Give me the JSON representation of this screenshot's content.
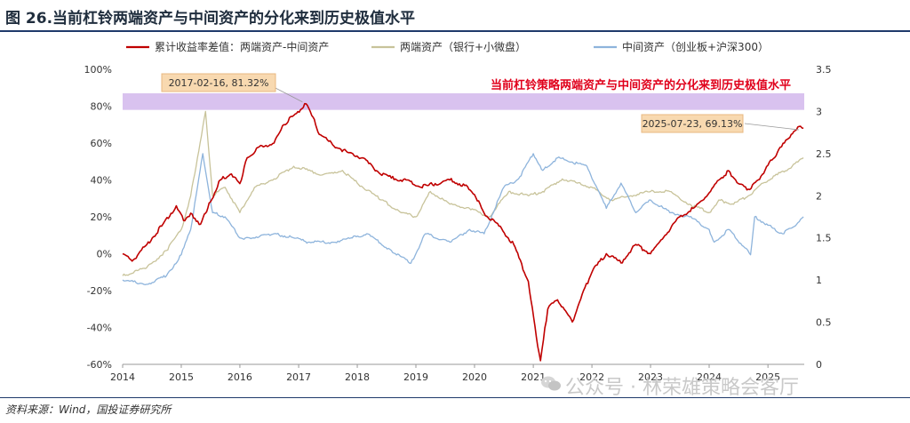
{
  "figure": {
    "title": "图 26.当前杠铃两端资产与中间资产的分化来到历史极值水平",
    "source": "资料来源：Wind，国投证券研究所",
    "watermark": "公众号 · 林荣雄策略会客厅"
  },
  "chart_data": {
    "type": "line",
    "legend_placement": "top",
    "grid": false,
    "x_ticks": [
      "2014",
      "2015",
      "2016",
      "2017",
      "2018",
      "2019",
      "2020",
      "2021",
      "2022",
      "2023",
      "2024",
      "2025"
    ],
    "xlim": [
      "2014-01-01",
      "2025-08-15"
    ],
    "y_left": {
      "ylim": [
        -60,
        100
      ],
      "ticks": [
        "100%",
        "80%",
        "60%",
        "40%",
        "20%",
        "0%",
        "-20%",
        "-40%",
        "-60%"
      ]
    },
    "y_right": {
      "ylim": [
        0,
        3.5
      ],
      "ticks": [
        "3.5",
        "3",
        "2.5",
        "2",
        "1.5",
        "1",
        "0.5",
        "0"
      ]
    },
    "highlight_band": {
      "y_from": 78,
      "y_to": 87,
      "color": "#c9a8e8",
      "label": "当前杠铃策略两端资产与中间资产的分化来到历史极值水平"
    },
    "annotations": [
      {
        "date": "2017-02-16",
        "value": 81.32,
        "label": "2017-02-16, 81.32%"
      },
      {
        "date": "2025-07-23",
        "value": 69.13,
        "label": "2025-07-23, 69.13%"
      }
    ],
    "series": [
      {
        "name": "累计收益率差值：两端资产-中间资产",
        "axis": "left",
        "color": "#c00000",
        "points": [
          [
            "2014-01-01",
            0
          ],
          [
            "2014-03-01",
            -4
          ],
          [
            "2014-06-01",
            5
          ],
          [
            "2014-09-01",
            15
          ],
          [
            "2014-12-01",
            26
          ],
          [
            "2015-01-15",
            18
          ],
          [
            "2015-03-01",
            22
          ],
          [
            "2015-05-01",
            16
          ],
          [
            "2015-06-01",
            22
          ],
          [
            "2015-07-01",
            28
          ],
          [
            "2015-09-01",
            40
          ],
          [
            "2015-11-01",
            43
          ],
          [
            "2016-01-01",
            38
          ],
          [
            "2016-02-15",
            52
          ],
          [
            "2016-05-01",
            58
          ],
          [
            "2016-08-01",
            60
          ],
          [
            "2016-10-01",
            70
          ],
          [
            "2016-12-01",
            75
          ],
          [
            "2017-02-16",
            81.32
          ],
          [
            "2017-04-01",
            74
          ],
          [
            "2017-05-01",
            66
          ],
          [
            "2017-08-01",
            59
          ],
          [
            "2017-11-01",
            55
          ],
          [
            "2018-02-01",
            52
          ],
          [
            "2018-05-01",
            45
          ],
          [
            "2018-08-01",
            41
          ],
          [
            "2018-11-01",
            40
          ],
          [
            "2019-02-01",
            36
          ],
          [
            "2019-05-01",
            38
          ],
          [
            "2019-08-01",
            40
          ],
          [
            "2019-11-01",
            37
          ],
          [
            "2020-01-01",
            32
          ],
          [
            "2020-03-01",
            22
          ],
          [
            "2020-06-01",
            15
          ],
          [
            "2020-09-01",
            5
          ],
          [
            "2020-12-01",
            -15
          ],
          [
            "2021-01-20",
            -45
          ],
          [
            "2021-02-15",
            -58
          ],
          [
            "2021-04-01",
            -30
          ],
          [
            "2021-06-01",
            -25
          ],
          [
            "2021-09-01",
            -37
          ],
          [
            "2021-11-01",
            -22
          ],
          [
            "2022-01-01",
            -10
          ],
          [
            "2022-04-01",
            0
          ],
          [
            "2022-07-01",
            -5
          ],
          [
            "2022-10-01",
            5
          ],
          [
            "2023-01-01",
            0
          ],
          [
            "2023-04-01",
            10
          ],
          [
            "2023-07-01",
            20
          ],
          [
            "2023-10-01",
            25
          ],
          [
            "2024-01-01",
            33
          ],
          [
            "2024-03-01",
            40
          ],
          [
            "2024-05-01",
            45
          ],
          [
            "2024-07-01",
            38
          ],
          [
            "2024-09-01",
            35
          ],
          [
            "2024-11-01",
            40
          ],
          [
            "2025-01-01",
            48
          ],
          [
            "2025-03-01",
            55
          ],
          [
            "2025-05-01",
            62
          ],
          [
            "2025-07-23",
            69.13
          ],
          [
            "2025-08-10",
            68
          ]
        ]
      },
      {
        "name": "两端资产（银行+小微盘）",
        "axis": "right",
        "color": "#c8c39a",
        "points": [
          [
            "2014-01-01",
            1.05
          ],
          [
            "2014-06-01",
            1.15
          ],
          [
            "2014-10-01",
            1.35
          ],
          [
            "2015-01-01",
            1.6
          ],
          [
            "2015-03-01",
            2.0
          ],
          [
            "2015-06-01",
            3.0
          ],
          [
            "2015-07-15",
            2.0
          ],
          [
            "2015-10-01",
            2.1
          ],
          [
            "2016-01-01",
            1.8
          ],
          [
            "2016-04-01",
            2.1
          ],
          [
            "2016-08-01",
            2.2
          ],
          [
            "2016-12-01",
            2.35
          ],
          [
            "2017-03-01",
            2.3
          ],
          [
            "2017-06-01",
            2.25
          ],
          [
            "2017-10-01",
            2.3
          ],
          [
            "2018-01-01",
            2.15
          ],
          [
            "2018-06-01",
            1.95
          ],
          [
            "2018-10-01",
            1.8
          ],
          [
            "2019-01-01",
            1.75
          ],
          [
            "2019-04-01",
            2.05
          ],
          [
            "2019-08-01",
            1.9
          ],
          [
            "2019-12-01",
            1.85
          ],
          [
            "2020-04-01",
            1.75
          ],
          [
            "2020-08-01",
            2.05
          ],
          [
            "2020-12-01",
            2.0
          ],
          [
            "2021-03-01",
            2.05
          ],
          [
            "2021-07-01",
            2.2
          ],
          [
            "2021-10-01",
            2.15
          ],
          [
            "2022-01-01",
            2.1
          ],
          [
            "2022-05-01",
            1.95
          ],
          [
            "2022-09-01",
            2.0
          ],
          [
            "2023-01-01",
            2.05
          ],
          [
            "2023-05-01",
            2.05
          ],
          [
            "2023-09-01",
            1.9
          ],
          [
            "2024-01-01",
            1.8
          ],
          [
            "2024-03-01",
            1.95
          ],
          [
            "2024-06-01",
            1.9
          ],
          [
            "2024-09-01",
            2.0
          ],
          [
            "2024-12-01",
            2.15
          ],
          [
            "2025-03-01",
            2.25
          ],
          [
            "2025-06-01",
            2.35
          ],
          [
            "2025-08-10",
            2.45
          ]
        ]
      },
      {
        "name": "中间资产（创业板+沪深300）",
        "axis": "right",
        "color": "#8eb4dc",
        "points": [
          [
            "2014-01-01",
            1.0
          ],
          [
            "2014-06-01",
            0.95
          ],
          [
            "2014-10-01",
            1.05
          ],
          [
            "2015-01-01",
            1.3
          ],
          [
            "2015-03-01",
            1.6
          ],
          [
            "2015-05-15",
            2.5
          ],
          [
            "2015-07-15",
            1.8
          ],
          [
            "2015-10-01",
            1.75
          ],
          [
            "2016-01-01",
            1.5
          ],
          [
            "2016-03-01",
            1.5
          ],
          [
            "2016-08-01",
            1.55
          ],
          [
            "2016-12-01",
            1.5
          ],
          [
            "2017-03-01",
            1.45
          ],
          [
            "2017-08-01",
            1.45
          ],
          [
            "2017-12-01",
            1.5
          ],
          [
            "2018-03-01",
            1.55
          ],
          [
            "2018-08-01",
            1.35
          ],
          [
            "2018-12-01",
            1.2
          ],
          [
            "2019-03-01",
            1.55
          ],
          [
            "2019-08-01",
            1.45
          ],
          [
            "2019-12-01",
            1.6
          ],
          [
            "2020-03-01",
            1.55
          ],
          [
            "2020-07-01",
            2.1
          ],
          [
            "2020-10-01",
            2.2
          ],
          [
            "2021-01-01",
            2.5
          ],
          [
            "2021-03-01",
            2.3
          ],
          [
            "2021-06-01",
            2.45
          ],
          [
            "2021-09-01",
            2.4
          ],
          [
            "2021-12-01",
            2.35
          ],
          [
            "2022-04-01",
            1.85
          ],
          [
            "2022-07-01",
            2.15
          ],
          [
            "2022-10-01",
            1.8
          ],
          [
            "2023-01-01",
            1.95
          ],
          [
            "2023-05-01",
            1.8
          ],
          [
            "2023-09-01",
            1.75
          ],
          [
            "2024-01-01",
            1.6
          ],
          [
            "2024-02-01",
            1.45
          ],
          [
            "2024-05-01",
            1.6
          ],
          [
            "2024-08-01",
            1.4
          ],
          [
            "2024-09-15",
            1.3
          ],
          [
            "2024-10-10",
            1.75
          ],
          [
            "2025-01-01",
            1.65
          ],
          [
            "2025-04-01",
            1.55
          ],
          [
            "2025-06-01",
            1.62
          ],
          [
            "2025-08-10",
            1.75
          ]
        ]
      }
    ]
  }
}
